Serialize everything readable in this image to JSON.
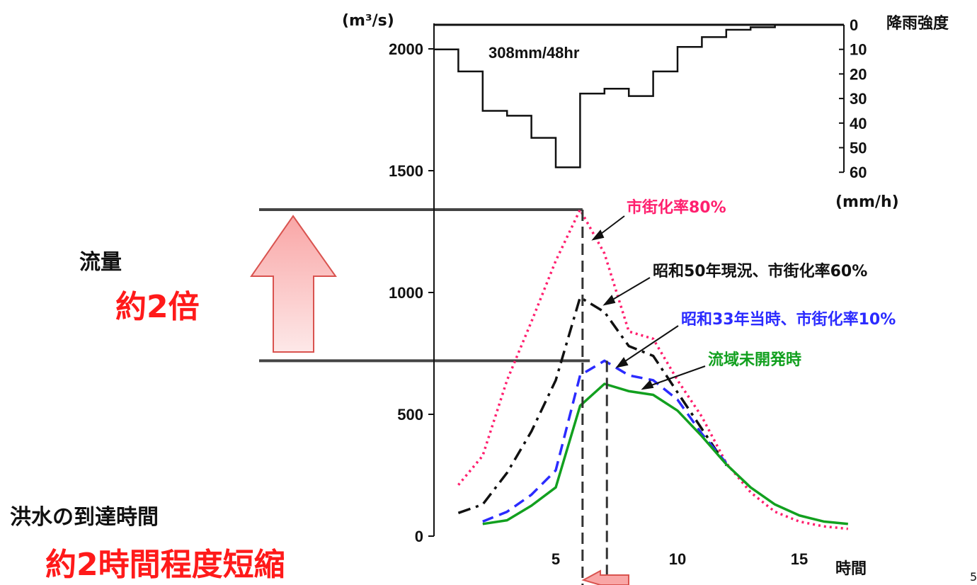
{
  "chart_data": {
    "type": "line",
    "x_unit_label": "時間",
    "y_unit_label": "(m³/s)",
    "x_ticks": [
      5,
      10,
      15
    ],
    "y_ticks": [
      0,
      500,
      1000,
      1500,
      2000
    ],
    "xlim": [
      0,
      17.5
    ],
    "ylim": [
      0,
      2100
    ],
    "series": [
      {
        "name": "市街化率80%",
        "color": "#ff1f6e",
        "style": "dotted",
        "x": [
          1,
          2,
          3,
          4,
          5,
          6,
          7,
          8,
          9,
          10,
          11,
          12,
          13,
          14,
          15,
          16,
          17
        ],
        "y": [
          210,
          330,
          640,
          880,
          1130,
          1340,
          1160,
          840,
          810,
          640,
          490,
          300,
          180,
          100,
          60,
          40,
          30
        ]
      },
      {
        "name": "昭和50年現況、市街化率60%",
        "color": "#111111",
        "style": "dashdot",
        "x": [
          1,
          2,
          3,
          4,
          5,
          6,
          7,
          8,
          9,
          10,
          11,
          12
        ],
        "y": [
          95,
          130,
          260,
          430,
          640,
          980,
          920,
          780,
          740,
          590,
          440,
          290
        ]
      },
      {
        "name": "昭和33年当時、市街化率10%",
        "color": "#2b2bff",
        "style": "dashed",
        "x": [
          2,
          3,
          4,
          5,
          6,
          7,
          8,
          9,
          10,
          11,
          12
        ],
        "y": [
          60,
          100,
          170,
          270,
          660,
          720,
          660,
          640,
          560,
          420,
          300
        ]
      },
      {
        "name": "流域未開発時",
        "color": "#12a01f",
        "style": "solid",
        "x": [
          2,
          3,
          4,
          5,
          6,
          7,
          8,
          9,
          10,
          11,
          12,
          13,
          14,
          15,
          16,
          17
        ],
        "y": [
          50,
          65,
          125,
          200,
          535,
          625,
          595,
          580,
          515,
          410,
          295,
          200,
          130,
          85,
          60,
          50
        ]
      }
    ],
    "rainfall": {
      "label": "308mm/48hr",
      "axis_title": "降雨強度",
      "unit_label": "(mm/h)",
      "ticks": [
        0,
        10,
        20,
        30,
        40,
        50,
        60
      ],
      "x_edges": [
        0,
        1,
        2,
        3,
        4,
        5,
        6,
        7,
        8,
        9,
        10,
        11,
        12,
        13,
        14,
        15
      ],
      "intensity": [
        10,
        19,
        35,
        37,
        46,
        58,
        28,
        26,
        29,
        19,
        9,
        5,
        2,
        1,
        0
      ]
    },
    "peak_times": [
      6.1,
      7.1
    ],
    "level_lines": [
      1340,
      720
    ]
  },
  "labels": {
    "flow": "流量",
    "flow_ratio": "約2倍",
    "arrival": "洪水の到達時間",
    "shortening": "約2時間程度短縮",
    "page_mark": "5"
  },
  "colors": {
    "red_text": "#ff1a1a",
    "arrow_fill_top": "#f9a6a6",
    "arrow_fill_bottom": "#fde8e8",
    "arrow_stroke": "#d9534f"
  }
}
